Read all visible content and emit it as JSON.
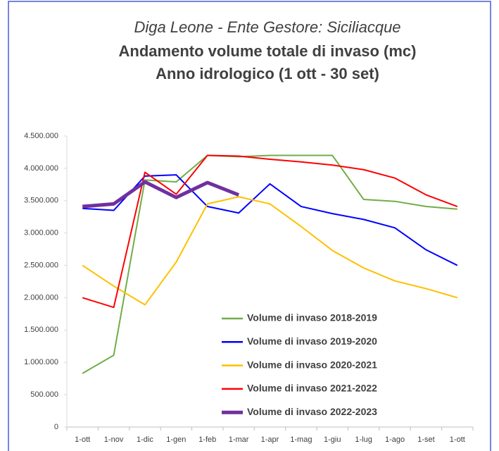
{
  "chart_data": {
    "type": "line",
    "title": [
      "Diga Leone - Ente Gestore: Siciliacque",
      "Andamento volume totale di invaso (mc)",
      "Anno idrologico (1 ott - 30 set)"
    ],
    "categories": [
      "1-ott",
      "1-nov",
      "1-dic",
      "1-gen",
      "1-feb",
      "1-mar",
      "1-apr",
      "1-mag",
      "1-giu",
      "1-lug",
      "1-ago",
      "1-set",
      "1-ott"
    ],
    "series": [
      {
        "name": "Volume di invaso 2018-2019",
        "color": "#70ad47",
        "values": [
          830000,
          1110000,
          3820000,
          3790000,
          4200000,
          4180000,
          4200000,
          4200000,
          4200000,
          3520000,
          3490000,
          3410000,
          3370000
        ]
      },
      {
        "name": "Volume di invaso 2019-2020",
        "color": "#0000ff",
        "values": [
          3380000,
          3350000,
          3880000,
          3900000,
          3410000,
          3310000,
          3760000,
          3410000,
          3300000,
          3210000,
          3080000,
          2740000,
          2500000
        ]
      },
      {
        "name": "Volume di invaso 2020-2021",
        "color": "#ffc000",
        "values": [
          2500000,
          2180000,
          1890000,
          2550000,
          3450000,
          3560000,
          3450000,
          3100000,
          2730000,
          2460000,
          2260000,
          2140000,
          2000000
        ]
      },
      {
        "name": "Volume di invaso 2021-2022",
        "color": "#ff0000",
        "values": [
          2000000,
          1850000,
          3940000,
          3600000,
          4200000,
          4190000,
          4140000,
          4100000,
          4050000,
          3980000,
          3850000,
          3590000,
          3410000
        ]
      },
      {
        "name": "Volume di invaso 2022-2023",
        "color": "#7030a0",
        "line_width": 5,
        "values": [
          3410000,
          3450000,
          3790000,
          3550000,
          3780000,
          3590000,
          null,
          null,
          null,
          null,
          null,
          null,
          null
        ]
      }
    ],
    "ylim": [
      0,
      4500000
    ],
    "yticks": [
      0,
      {
        "value": 500000,
        "label": "500.000"
      },
      {
        "value": 1000000,
        "label": "1.000.000"
      },
      {
        "value": 1500000,
        "label": "1.500.000"
      },
      {
        "value": 2000000,
        "label": "2.000.000"
      },
      {
        "value": 2500000,
        "label": "2.500.000"
      },
      {
        "value": 3000000,
        "label": "3.000.000"
      },
      {
        "value": 3500000,
        "label": "3.500.000"
      },
      {
        "value": 4000000,
        "label": "4.000.000"
      },
      {
        "value": 4500000,
        "label": "4.500.000"
      }
    ],
    "grid": false,
    "legend": "bottom"
  }
}
